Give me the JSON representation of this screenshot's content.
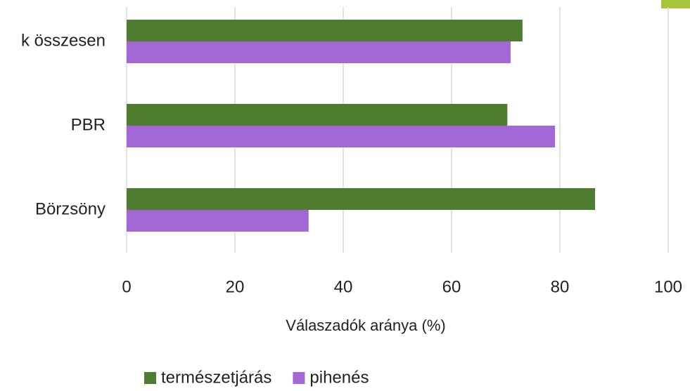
{
  "chart_data": {
    "type": "barh",
    "xlabel": "Válaszadók aránya (%)",
    "categories": [
      "k összesen",
      "PBR",
      "Börzsöny"
    ],
    "series": [
      {
        "name": "természetjárás",
        "color": "#4e7d2f",
        "values": [
          73.1,
          70.3,
          86.5
        ]
      },
      {
        "name": "pihenés",
        "color": "#a368d6",
        "values": [
          70.9,
          79.1,
          33.6
        ]
      }
    ],
    "xlim": [
      0,
      100
    ],
    "xticks": [
      0,
      20,
      40,
      60,
      80,
      100
    ],
    "grid": true,
    "legend": "bottom"
  }
}
